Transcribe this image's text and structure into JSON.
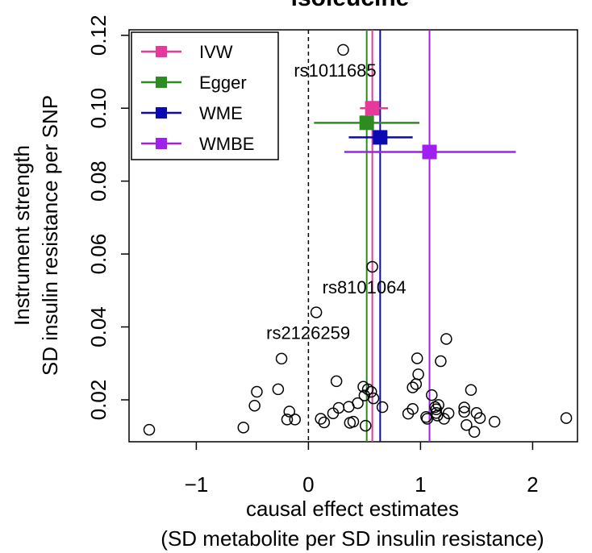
{
  "chart_data": {
    "type": "scatter",
    "title": "isoleucine",
    "xlabel_line1": "causal effect estimates",
    "xlabel_line2": "(SD metabolite per SD insulin resistance)",
    "ylabel_line1": "Instrument strength",
    "ylabel_line2": "SD insulin resistance per SNP",
    "xlim": [
      -1.6,
      2.4
    ],
    "ylim": [
      0.0085,
      0.1215
    ],
    "x_ticks": [
      -1,
      0,
      1,
      2
    ],
    "x_tick_labels": [
      "−1",
      "0",
      "1",
      "2"
    ],
    "y_ticks": [
      0.02,
      0.04,
      0.06,
      0.08,
      0.1,
      0.12
    ],
    "y_tick_labels": [
      "0.02",
      "0.04",
      "0.06",
      "0.08",
      "0.10",
      "0.12"
    ],
    "reference_line_x": 0,
    "legend": {
      "position": "top-left",
      "items": [
        {
          "label": "IVW",
          "color": "#e6399b"
        },
        {
          "label": "Egger",
          "color": "#2e8b22"
        },
        {
          "label": "WME",
          "color": "#0a0ab4"
        },
        {
          "label": "WMBE",
          "color": "#a020f0"
        }
      ]
    },
    "estimates": [
      {
        "name": "IVW",
        "color": "#e6399b",
        "estimate": 0.57,
        "y": 0.1,
        "ci": [
          0.46,
          0.71
        ]
      },
      {
        "name": "Egger",
        "color": "#2e8b22",
        "estimate": 0.52,
        "y": 0.096,
        "ci": [
          0.05,
          0.99
        ]
      },
      {
        "name": "WME",
        "color": "#0a0ab4",
        "estimate": 0.64,
        "y": 0.092,
        "ci": [
          0.36,
          0.93
        ]
      },
      {
        "name": "WMBE",
        "color": "#a020f0",
        "estimate": 1.08,
        "y": 0.088,
        "ci": [
          0.32,
          1.85
        ]
      }
    ],
    "labeled_snps": [
      {
        "label": "rs1011685",
        "x": 0.31,
        "y": 0.116
      },
      {
        "label": "rs8101064",
        "x": 0.57,
        "y": 0.0565
      },
      {
        "label": "rs2126259",
        "x": 0.07,
        "y": 0.044
      }
    ],
    "points": [
      {
        "x": -1.42,
        "y": 0.0118
      },
      {
        "x": -0.58,
        "y": 0.0124
      },
      {
        "x": -0.48,
        "y": 0.0184
      },
      {
        "x": -0.46,
        "y": 0.0222
      },
      {
        "x": -0.27,
        "y": 0.0229
      },
      {
        "x": -0.24,
        "y": 0.0313
      },
      {
        "x": -0.19,
        "y": 0.0146
      },
      {
        "x": -0.17,
        "y": 0.0168
      },
      {
        "x": -0.12,
        "y": 0.0146
      },
      {
        "x": 0.11,
        "y": 0.0148
      },
      {
        "x": 0.14,
        "y": 0.0138
      },
      {
        "x": 0.22,
        "y": 0.0163
      },
      {
        "x": 0.25,
        "y": 0.0251
      },
      {
        "x": 0.27,
        "y": 0.0178
      },
      {
        "x": 0.36,
        "y": 0.0181
      },
      {
        "x": 0.37,
        "y": 0.0137
      },
      {
        "x": 0.4,
        "y": 0.014
      },
      {
        "x": 0.44,
        "y": 0.0191
      },
      {
        "x": 0.49,
        "y": 0.0236
      },
      {
        "x": 0.5,
        "y": 0.0212
      },
      {
        "x": 0.51,
        "y": 0.0129
      },
      {
        "x": 0.53,
        "y": 0.0229
      },
      {
        "x": 0.56,
        "y": 0.0222
      },
      {
        "x": 0.58,
        "y": 0.0204
      },
      {
        "x": 0.66,
        "y": 0.018
      },
      {
        "x": 0.89,
        "y": 0.0162
      },
      {
        "x": 0.93,
        "y": 0.0175
      },
      {
        "x": 0.93,
        "y": 0.0234
      },
      {
        "x": 0.96,
        "y": 0.0243
      },
      {
        "x": 0.97,
        "y": 0.0314
      },
      {
        "x": 0.98,
        "y": 0.027
      },
      {
        "x": 1.05,
        "y": 0.0153
      },
      {
        "x": 1.06,
        "y": 0.0148
      },
      {
        "x": 1.1,
        "y": 0.0213
      },
      {
        "x": 1.13,
        "y": 0.018
      },
      {
        "x": 1.14,
        "y": 0.0174
      },
      {
        "x": 1.14,
        "y": 0.0164
      },
      {
        "x": 1.15,
        "y": 0.0157
      },
      {
        "x": 1.16,
        "y": 0.0186
      },
      {
        "x": 1.18,
        "y": 0.0306
      },
      {
        "x": 1.21,
        "y": 0.0148
      },
      {
        "x": 1.23,
        "y": 0.0367
      },
      {
        "x": 1.25,
        "y": 0.0163
      },
      {
        "x": 1.39,
        "y": 0.0179
      },
      {
        "x": 1.39,
        "y": 0.0167
      },
      {
        "x": 1.41,
        "y": 0.0131
      },
      {
        "x": 1.45,
        "y": 0.0227
      },
      {
        "x": 1.48,
        "y": 0.0112
      },
      {
        "x": 1.5,
        "y": 0.0164
      },
      {
        "x": 1.53,
        "y": 0.015
      },
      {
        "x": 1.66,
        "y": 0.014
      },
      {
        "x": 2.3,
        "y": 0.015
      }
    ]
  }
}
